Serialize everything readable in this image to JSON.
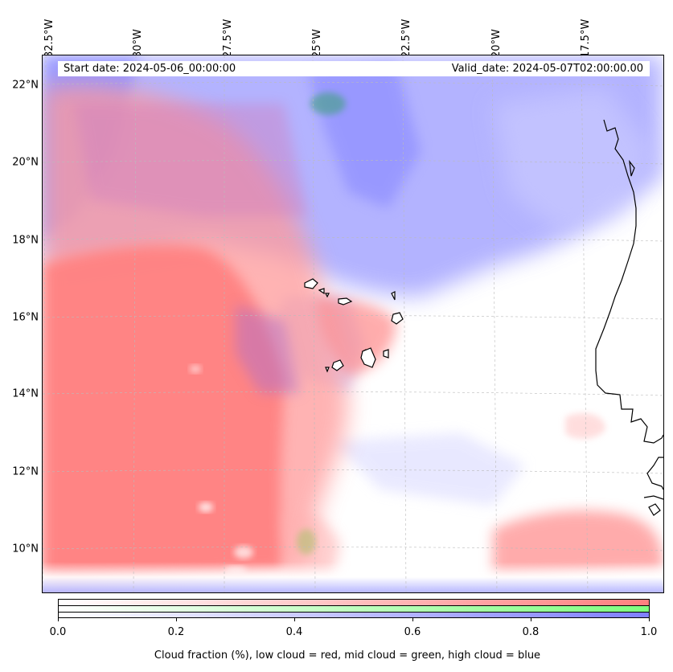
{
  "map": {
    "start_date": "Start date: 2024-05-06_00:00:00",
    "valid_date": "Valid_date: 2024-05-07T02:00:00.00",
    "lon_labels": [
      "32.5°W",
      "30°W",
      "27.5°W",
      "25°W",
      "22.5°W",
      "20°W",
      "17.5°W"
    ],
    "lat_labels": [
      "22°N",
      "20°N",
      "18°N",
      "16°N",
      "14°N",
      "12°N",
      "10°N"
    ],
    "colors": {
      "low_cloud": "#ff7f7f",
      "mid_cloud": "#7fff7f",
      "high_cloud": "#7f7fff",
      "coastline": "#000000",
      "gridline": "#bbbbbb"
    }
  },
  "colorbar": {
    "tick_labels": [
      "0.0",
      "0.2",
      "0.4",
      "0.6",
      "0.8",
      "1.0"
    ],
    "caption": "Cloud fraction (%), low cloud = red, mid cloud = green, high cloud = blue"
  }
}
